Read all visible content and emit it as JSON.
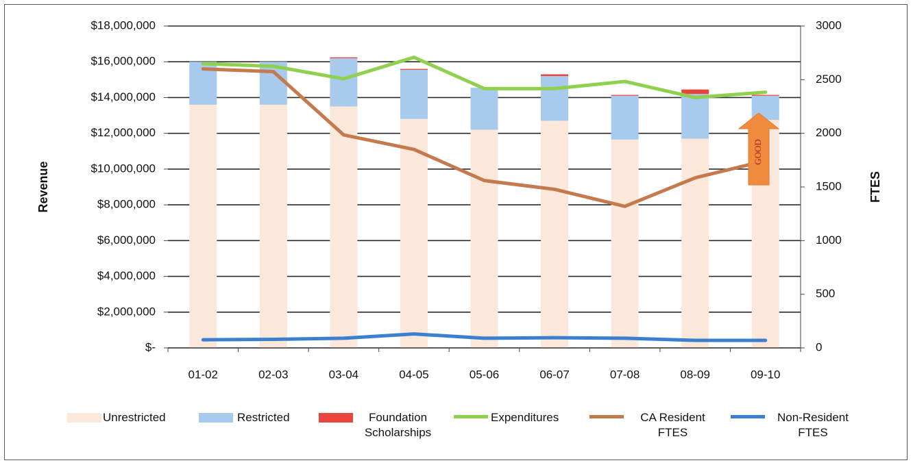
{
  "chart_data": {
    "type": "combo",
    "y_label": "Revenue",
    "y2_label": "FTES",
    "annotation": "GOOD",
    "categories": [
      "01-02",
      "02-03",
      "03-04",
      "04-05",
      "05-06",
      "06-07",
      "07-08",
      "08-09",
      "09-10"
    ],
    "series": [
      {
        "name": "Unrestricted",
        "type": "bar",
        "color": "#fbe8da",
        "values": [
          13600000,
          13600000,
          13500000,
          12800000,
          12200000,
          12700000,
          11650000,
          11700000,
          12750000
        ]
      },
      {
        "name": "Restricted",
        "type": "bar",
        "color": "#a8caed",
        "values": [
          2400000,
          2400000,
          2700000,
          2750000,
          2350000,
          2500000,
          2450000,
          2500000,
          1350000
        ]
      },
      {
        "name": "Foundation Scholarships",
        "type": "bar",
        "color": "#e8453f",
        "values": [
          0,
          0,
          50000,
          50000,
          0,
          100000,
          50000,
          250000,
          50000
        ]
      },
      {
        "name": "Expenditures",
        "type": "line",
        "color": "#8fd14f",
        "values": [
          15900000,
          15750000,
          15050000,
          16250000,
          14500000,
          14500000,
          14900000,
          14000000,
          14300000
        ]
      },
      {
        "name": "CA Resident FTES",
        "type": "line",
        "axis": "y2",
        "color": "#c47a4c",
        "values": [
          2600,
          2575,
          1985,
          1850,
          1560,
          1478,
          1319,
          1585,
          1745
        ]
      },
      {
        "name": "Non-Resident FTES",
        "type": "line",
        "axis": "y2",
        "color": "#3b7fd0",
        "values": [
          76,
          80,
          90,
          130,
          90,
          95,
          90,
          70,
          70
        ]
      }
    ],
    "ylim": [
      0,
      18000000
    ],
    "yticks": [
      {
        "value": 0,
        "label": "$-"
      },
      {
        "value": 2000000,
        "label": "$2,000,000"
      },
      {
        "value": 4000000,
        "label": "$4,000,000"
      },
      {
        "value": 6000000,
        "label": "$6,000,000"
      },
      {
        "value": 8000000,
        "label": "$8,000,000"
      },
      {
        "value": 10000000,
        "label": "$10,000,000"
      },
      {
        "value": 12000000,
        "label": "$12,000,000"
      },
      {
        "value": 14000000,
        "label": "$14,000,000"
      },
      {
        "value": 16000000,
        "label": "$16,000,000"
      },
      {
        "value": 18000000,
        "label": "$18,000,000"
      }
    ],
    "y2lim": [
      0,
      3000
    ],
    "y2ticks": [
      0,
      500,
      1000,
      1500,
      2000,
      2500,
      3000
    ],
    "grid": true,
    "legend": "bottom"
  }
}
